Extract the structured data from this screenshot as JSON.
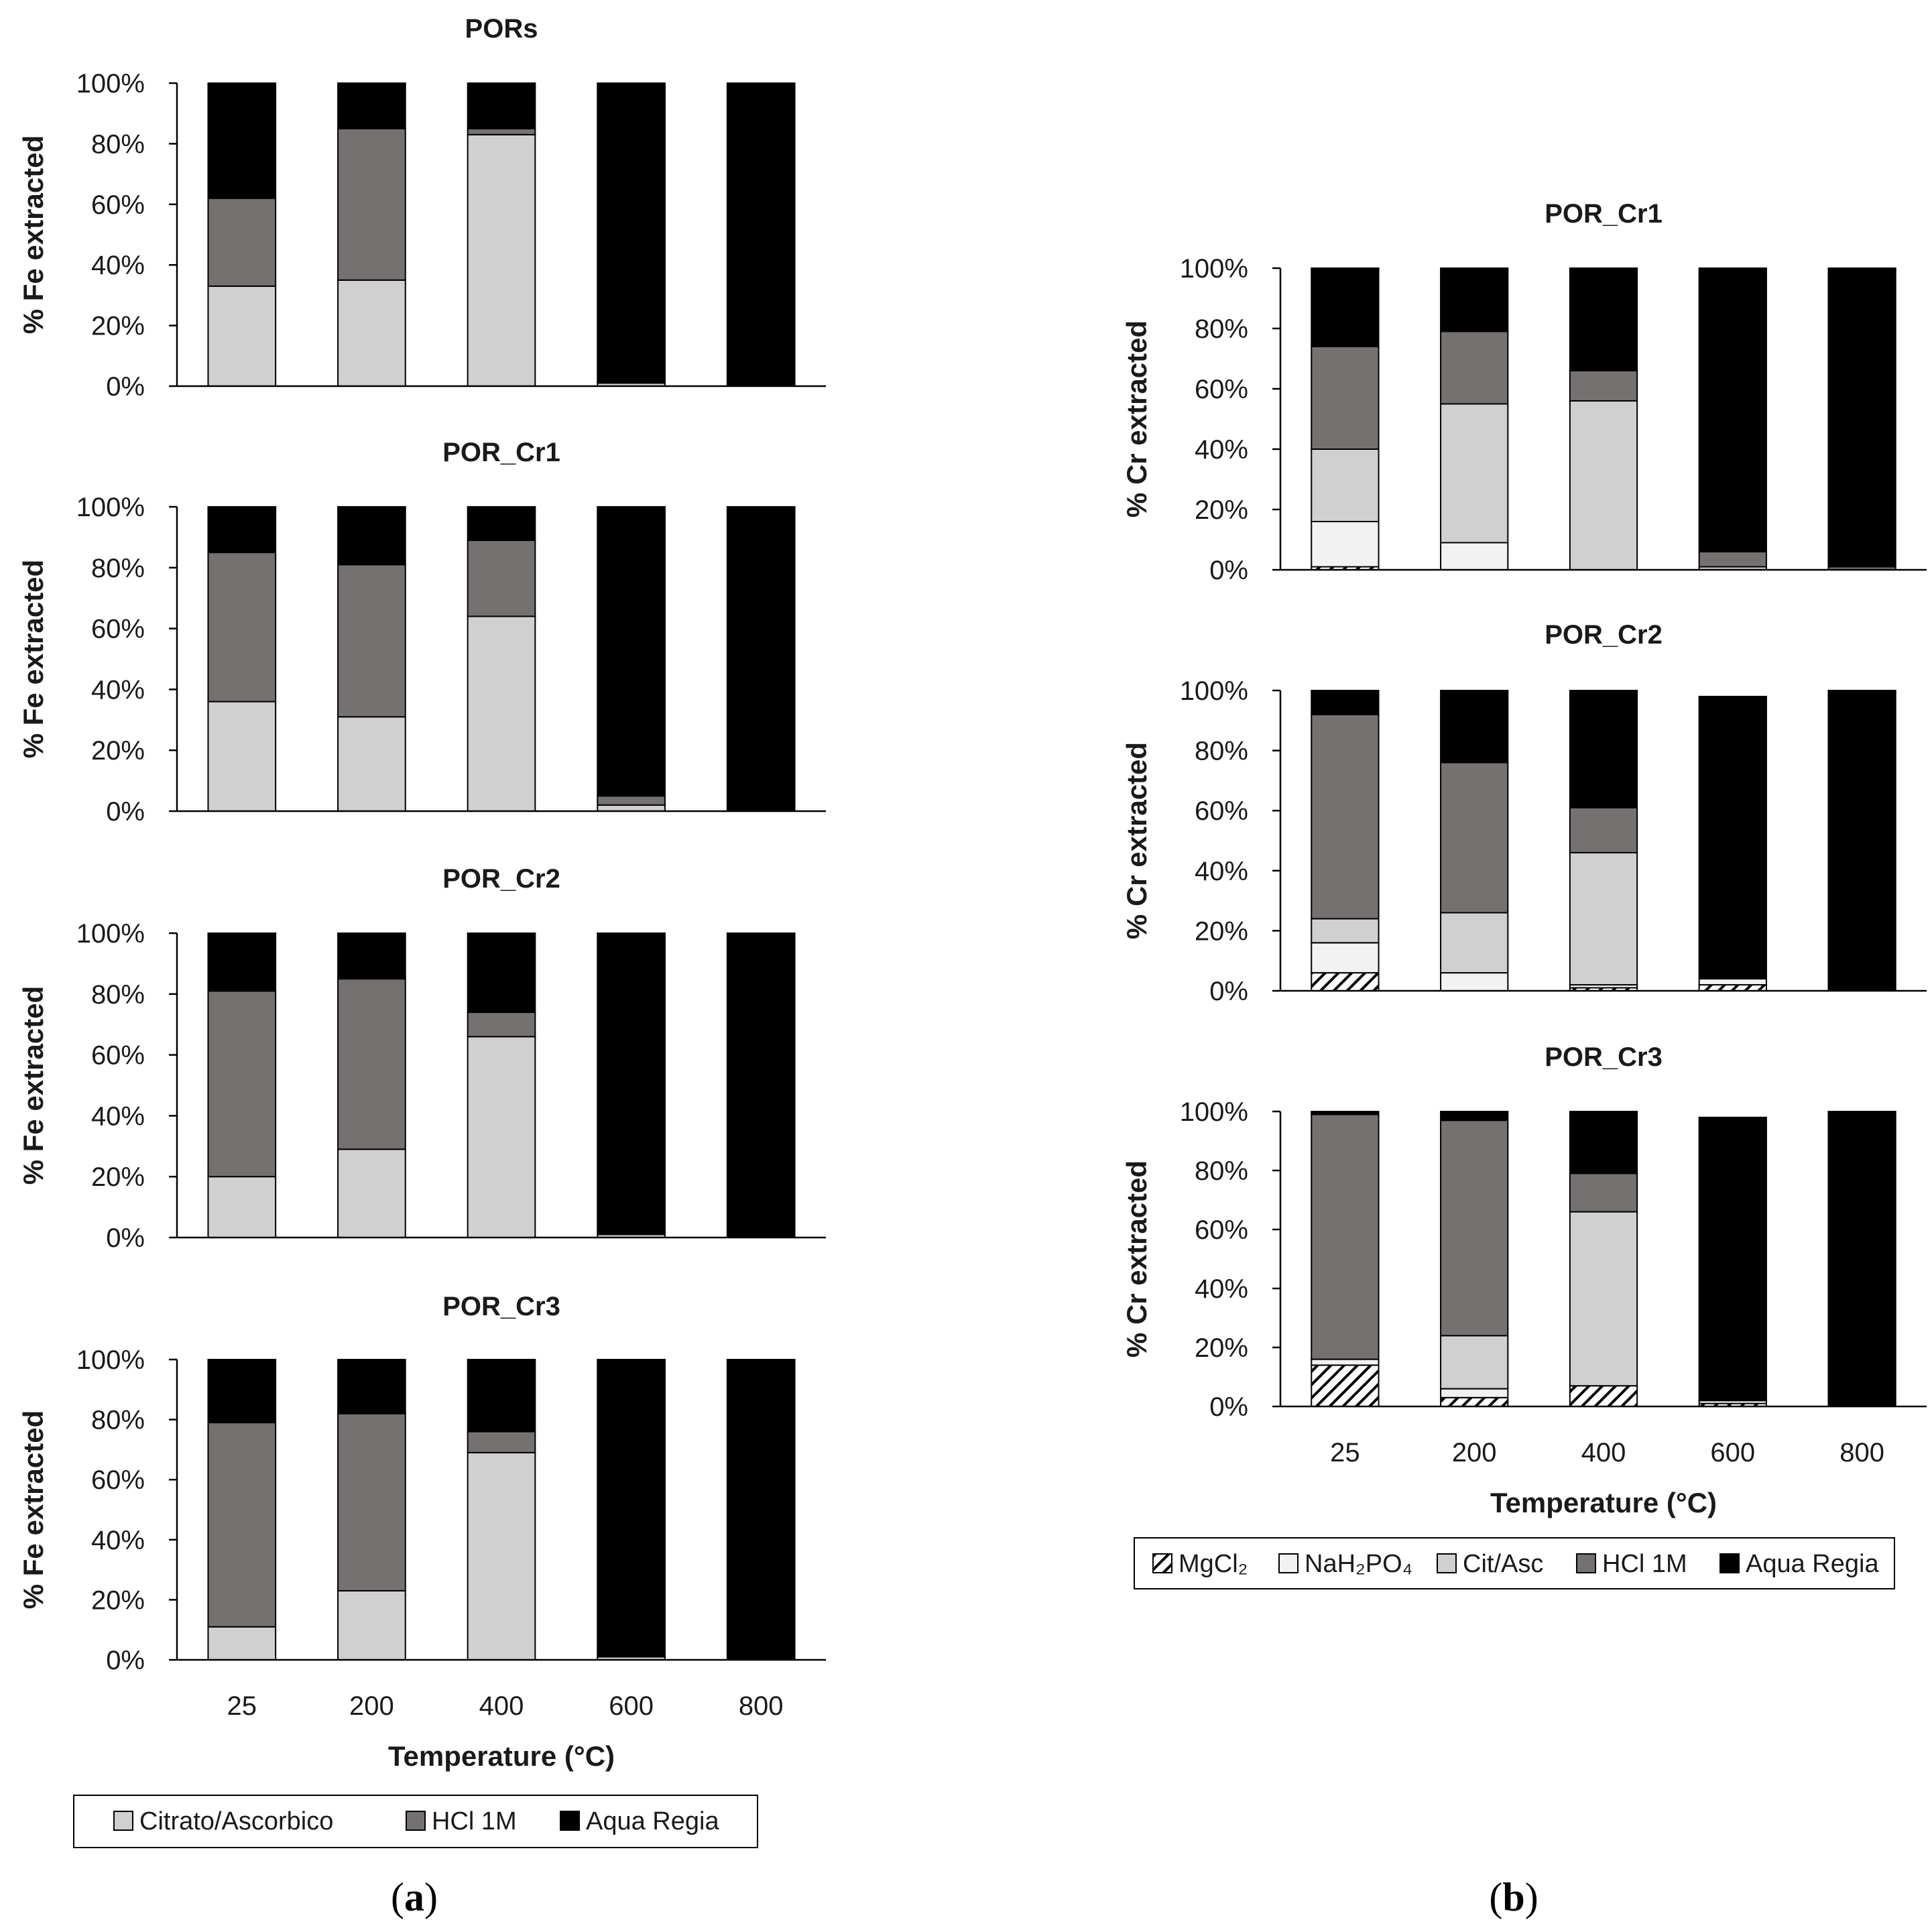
{
  "colors": {
    "MgCl2": "hatch",
    "NaH2PO4": "#f2f2f2",
    "cit_asc": "#d0d0d0",
    "hcl": "#767171",
    "aqua": "#000000",
    "axis": "#000000"
  },
  "chart_data": [
    {
      "id": "a1",
      "panel": "a",
      "type": "bar",
      "stacked": true,
      "title": "PORs",
      "ylabel": "% Fe extracted",
      "xlabel": "",
      "categories": [
        "25",
        "200",
        "400",
        "600",
        "800"
      ],
      "ylim": [
        0,
        100
      ],
      "yticks": [
        "0%",
        "20%",
        "40%",
        "60%",
        "80%",
        "100%"
      ],
      "series": [
        {
          "name": "Citrato/Ascorbico",
          "key": "cit_asc",
          "values": [
            33,
            35,
            83,
            1,
            0
          ]
        },
        {
          "name": "HCl 1M",
          "key": "hcl",
          "values": [
            29,
            50,
            2,
            0,
            0
          ]
        },
        {
          "name": "Aqua Regia",
          "key": "aqua",
          "values": [
            38,
            15,
            15,
            99,
            100
          ]
        }
      ]
    },
    {
      "id": "a2",
      "panel": "a",
      "type": "bar",
      "stacked": true,
      "title": "POR_Cr1",
      "ylabel": "% Fe extracted",
      "xlabel": "",
      "categories": [
        "25",
        "200",
        "400",
        "600",
        "800"
      ],
      "ylim": [
        0,
        100
      ],
      "yticks": [
        "0%",
        "20%",
        "40%",
        "60%",
        "80%",
        "100%"
      ],
      "series": [
        {
          "name": "Citrato/Ascorbico",
          "key": "cit_asc",
          "values": [
            36,
            31,
            64,
            2,
            0
          ]
        },
        {
          "name": "HCl 1M",
          "key": "hcl",
          "values": [
            49,
            50,
            25,
            3,
            0
          ]
        },
        {
          "name": "Aqua Regia",
          "key": "aqua",
          "values": [
            15,
            19,
            11,
            95,
            100
          ]
        }
      ]
    },
    {
      "id": "a3",
      "panel": "a",
      "type": "bar",
      "stacked": true,
      "title": "POR_Cr2",
      "ylabel": "% Fe extracted",
      "xlabel": "",
      "categories": [
        "25",
        "200",
        "400",
        "600",
        "800"
      ],
      "ylim": [
        0,
        100
      ],
      "yticks": [
        "0%",
        "20%",
        "40%",
        "60%",
        "80%",
        "100%"
      ],
      "series": [
        {
          "name": "Citrato/Ascorbico",
          "key": "cit_asc",
          "values": [
            20,
            29,
            66,
            1,
            0
          ]
        },
        {
          "name": "HCl 1M",
          "key": "hcl",
          "values": [
            61,
            56,
            8,
            0,
            0
          ]
        },
        {
          "name": "Aqua Regia",
          "key": "aqua",
          "values": [
            19,
            15,
            26,
            99,
            100
          ]
        }
      ]
    },
    {
      "id": "a4",
      "panel": "a",
      "type": "bar",
      "stacked": true,
      "title": "POR_Cr3",
      "ylabel": "% Fe extracted",
      "xlabel": "Temperature (°C)",
      "categories": [
        "25",
        "200",
        "400",
        "600",
        "800"
      ],
      "ylim": [
        0,
        100
      ],
      "yticks": [
        "0%",
        "20%",
        "40%",
        "60%",
        "80%",
        "100%"
      ],
      "series": [
        {
          "name": "Citrato/Ascorbico",
          "key": "cit_asc",
          "values": [
            11,
            23,
            69,
            1,
            0
          ]
        },
        {
          "name": "HCl 1M",
          "key": "hcl",
          "values": [
            68,
            59,
            7,
            0,
            0
          ]
        },
        {
          "name": "Aqua Regia",
          "key": "aqua",
          "values": [
            21,
            18,
            24,
            99,
            100
          ]
        }
      ]
    },
    {
      "id": "b1",
      "panel": "b",
      "type": "bar",
      "stacked": true,
      "title": "POR_Cr1",
      "ylabel": "% Cr extracted",
      "xlabel": "",
      "categories": [
        "25",
        "200",
        "400",
        "600",
        "800"
      ],
      "ylim": [
        0,
        100
      ],
      "yticks": [
        "0%",
        "20%",
        "40%",
        "60%",
        "80%",
        "100%"
      ],
      "series": [
        {
          "name": "MgCl₂",
          "key": "MgCl2",
          "values": [
            1,
            0,
            0,
            0,
            0
          ]
        },
        {
          "name": "NaH₂PO₄",
          "key": "NaH2PO4",
          "values": [
            15,
            9,
            0,
            0,
            0
          ]
        },
        {
          "name": "Cit/Asc",
          "key": "cit_asc",
          "values": [
            24,
            46,
            56,
            1,
            0
          ]
        },
        {
          "name": "HCl 1M",
          "key": "hcl",
          "values": [
            34,
            24,
            10,
            5,
            1
          ]
        },
        {
          "name": "Aqua Regia",
          "key": "aqua",
          "values": [
            26,
            21,
            34,
            94,
            99
          ]
        }
      ]
    },
    {
      "id": "b2",
      "panel": "b",
      "type": "bar",
      "stacked": true,
      "title": "POR_Cr2",
      "ylabel": "% Cr extracted",
      "xlabel": "",
      "categories": [
        "25",
        "200",
        "400",
        "600",
        "800"
      ],
      "ylim": [
        0,
        100
      ],
      "yticks": [
        "0%",
        "20%",
        "40%",
        "60%",
        "80%",
        "100%"
      ],
      "series": [
        {
          "name": "MgCl₂",
          "key": "MgCl2",
          "values": [
            6,
            0,
            1,
            2,
            0
          ]
        },
        {
          "name": "NaH₂PO₄",
          "key": "NaH2PO4",
          "values": [
            10,
            6,
            1,
            2,
            0
          ]
        },
        {
          "name": "Cit/Asc",
          "key": "cit_asc",
          "values": [
            8,
            20,
            44,
            0,
            0
          ]
        },
        {
          "name": "HCl 1M",
          "key": "hcl",
          "values": [
            68,
            50,
            15,
            0,
            0
          ]
        },
        {
          "name": "Aqua Regia",
          "key": "aqua",
          "values": [
            8,
            24,
            39,
            94,
            100
          ]
        }
      ]
    },
    {
      "id": "b3",
      "panel": "b",
      "type": "bar",
      "stacked": true,
      "title": "POR_Cr3",
      "ylabel": "% Cr extracted",
      "xlabel": "Temperature (°C)",
      "categories": [
        "25",
        "200",
        "400",
        "600",
        "800"
      ],
      "ylim": [
        0,
        100
      ],
      "yticks": [
        "0%",
        "20%",
        "40%",
        "60%",
        "80%",
        "100%"
      ],
      "series": [
        {
          "name": "MgCl₂",
          "key": "MgCl2",
          "values": [
            14,
            3,
            7,
            1,
            0
          ]
        },
        {
          "name": "NaH₂PO₄",
          "key": "NaH2PO4",
          "values": [
            2,
            3,
            0,
            1,
            0
          ]
        },
        {
          "name": "Cit/Asc",
          "key": "cit_asc",
          "values": [
            0,
            18,
            59,
            0,
            0
          ]
        },
        {
          "name": "HCl 1M",
          "key": "hcl",
          "values": [
            83,
            73,
            13,
            0,
            0
          ]
        },
        {
          "name": "Aqua Regia",
          "key": "aqua",
          "values": [
            1,
            3,
            21,
            96,
            100
          ]
        }
      ]
    }
  ],
  "legend_a": {
    "items": [
      {
        "label": "Citrato/Ascorbico",
        "key": "cit_asc"
      },
      {
        "label": "HCl 1M",
        "key": "hcl"
      },
      {
        "label": "Aqua Regia",
        "key": "aqua"
      }
    ]
  },
  "legend_b": {
    "items": [
      {
        "label": "MgCl₂",
        "key": "MgCl2"
      },
      {
        "label": "NaH₂PO₄",
        "key": "NaH2PO4"
      },
      {
        "label": "Cit/Asc",
        "key": "cit_asc"
      },
      {
        "label": "HCl 1M",
        "key": "hcl"
      },
      {
        "label": "Aqua Regia",
        "key": "aqua"
      }
    ]
  },
  "panel_labels": {
    "a": {
      "open": "(",
      "letter": "a",
      "close": ")"
    },
    "b": {
      "open": "(",
      "letter": "b",
      "close": ")"
    }
  }
}
